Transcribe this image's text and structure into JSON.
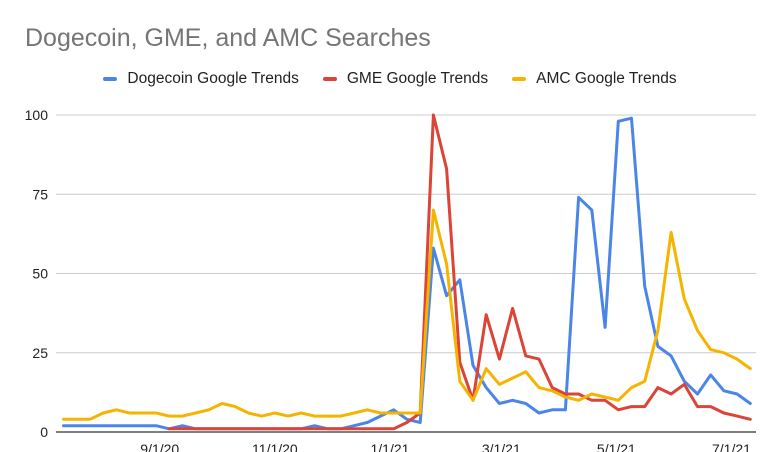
{
  "chart_data": {
    "type": "line",
    "title": "Dogecoin, GME, and AMC Searches",
    "xlabel": "",
    "ylabel": "",
    "ylim": [
      0,
      100
    ],
    "yticks": [
      0,
      25,
      50,
      75,
      100
    ],
    "grid": true,
    "legend_position": "top",
    "x_tick_labels": [
      "9/1/20",
      "11/1/20",
      "1/1/21",
      "3/1/21",
      "5/1/21",
      "7/1/21"
    ],
    "x": [
      "2020-07-12",
      "2020-07-19",
      "2020-07-26",
      "2020-08-02",
      "2020-08-09",
      "2020-08-16",
      "2020-08-23",
      "2020-08-30",
      "2020-09-06",
      "2020-09-13",
      "2020-09-20",
      "2020-09-27",
      "2020-10-04",
      "2020-10-11",
      "2020-10-18",
      "2020-10-25",
      "2020-11-01",
      "2020-11-08",
      "2020-11-15",
      "2020-11-22",
      "2020-11-29",
      "2020-12-06",
      "2020-12-13",
      "2020-12-20",
      "2020-12-27",
      "2021-01-03",
      "2021-01-10",
      "2021-01-17",
      "2021-01-24",
      "2021-01-31",
      "2021-02-07",
      "2021-02-14",
      "2021-02-21",
      "2021-02-28",
      "2021-03-07",
      "2021-03-14",
      "2021-03-21",
      "2021-03-28",
      "2021-04-04",
      "2021-04-11",
      "2021-04-18",
      "2021-04-25",
      "2021-05-02",
      "2021-05-09",
      "2021-05-16",
      "2021-05-23",
      "2021-05-30",
      "2021-06-06",
      "2021-06-13",
      "2021-06-20",
      "2021-06-27",
      "2021-07-04",
      "2021-07-11"
    ],
    "series": [
      {
        "name": "Dogecoin Google Trends",
        "color": "#4A86E8",
        "values": [
          2,
          2,
          2,
          2,
          2,
          2,
          2,
          2,
          1,
          2,
          1,
          1,
          1,
          1,
          1,
          1,
          1,
          1,
          1,
          2,
          1,
          1,
          2,
          3,
          5,
          7,
          4,
          3,
          58,
          43,
          48,
          21,
          14,
          9,
          10,
          9,
          6,
          7,
          7,
          74,
          70,
          33,
          98,
          99,
          46,
          27,
          24,
          16,
          12,
          18,
          13,
          12,
          9
        ]
      },
      {
        "name": "GME Google Trends",
        "color": "#DB4437",
        "values": [
          null,
          null,
          null,
          null,
          null,
          null,
          null,
          null,
          1,
          1,
          1,
          1,
          1,
          1,
          1,
          1,
          1,
          1,
          1,
          1,
          1,
          1,
          1,
          1,
          1,
          1,
          3,
          6,
          100,
          83,
          22,
          10,
          37,
          23,
          39,
          24,
          23,
          14,
          12,
          12,
          10,
          10,
          7,
          8,
          8,
          14,
          12,
          15,
          8,
          8,
          6,
          5,
          4
        ]
      },
      {
        "name": "AMC Google Trends",
        "color": "#F4B400",
        "values": [
          4,
          4,
          4,
          6,
          7,
          6,
          6,
          6,
          5,
          5,
          6,
          7,
          9,
          8,
          6,
          5,
          6,
          5,
          6,
          5,
          5,
          5,
          6,
          7,
          6,
          6,
          6,
          6,
          70,
          53,
          16,
          10,
          20,
          15,
          17,
          19,
          14,
          13,
          11,
          10,
          12,
          11,
          10,
          14,
          16,
          32,
          63,
          42,
          32,
          26,
          25,
          23,
          20
        ]
      }
    ]
  }
}
